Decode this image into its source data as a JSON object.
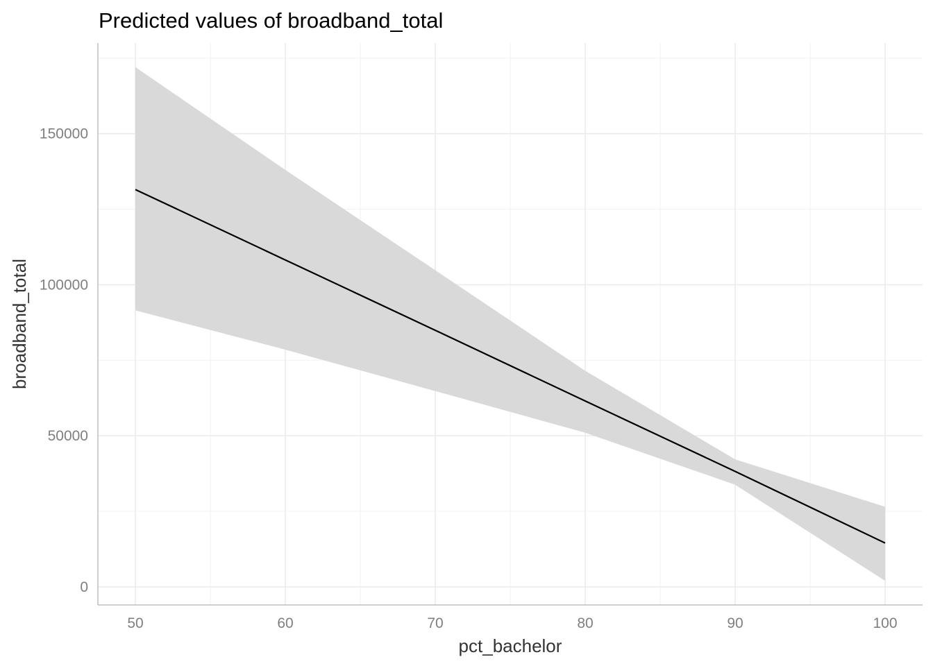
{
  "chart_data": {
    "type": "line",
    "title": "Predicted values of broadband_total",
    "xlabel": "pct_bachelor",
    "ylabel": "broadband_total",
    "xlim": [
      47.5,
      102.5
    ],
    "ylim": [
      -6000,
      180000
    ],
    "x_ticks": [
      50,
      60,
      70,
      80,
      90,
      100
    ],
    "x_tick_labels": [
      "50",
      "60",
      "70",
      "80",
      "90",
      "100"
    ],
    "x_minor_ticks": [
      55,
      65,
      75,
      85,
      95
    ],
    "y_ticks": [
      0,
      50000,
      100000,
      150000
    ],
    "y_tick_labels": [
      "0",
      "50000",
      "100000",
      "150000"
    ],
    "y_minor_ticks": [
      25000,
      75000,
      125000,
      175000
    ],
    "grid": true,
    "legend": "none",
    "series": [
      {
        "x": [
          50,
          60,
          70,
          80,
          90,
          100
        ],
        "values": [
          131500,
          108200,
          84900,
          61500,
          38200,
          14500
        ],
        "ci_low": [
          91500,
          78500,
          64800,
          51000,
          33800,
          2000
        ],
        "ci_high": [
          172000,
          138000,
          104800,
          71500,
          42200,
          26500
        ],
        "line_color": "#000000",
        "band_color": "#d9d9d9"
      }
    ]
  }
}
